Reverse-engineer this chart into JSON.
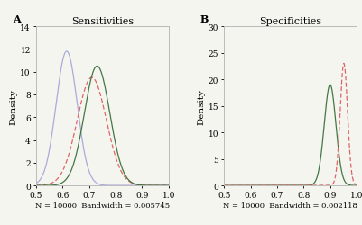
{
  "title_A": "Sensitivities",
  "title_B": "Specificities",
  "label_A": "A",
  "label_B": "B",
  "ylabel": "Density",
  "xlabel_A": "N = 10000  Bandwidth = 0.005745",
  "xlabel_B": "N = 10000  Bandwidth = 0.002118",
  "xlim": [
    0.5,
    1.0
  ],
  "panel_A": {
    "curves": [
      {
        "color": "#AAAADD",
        "linestyle": "solid",
        "mean": 0.615,
        "std": 0.04,
        "peak": 11.8
      },
      {
        "color": "#DD6666",
        "linestyle": "dashed",
        "mean": 0.71,
        "std": 0.055,
        "peak": 9.5
      },
      {
        "color": "#447744",
        "linestyle": "solid",
        "mean": 0.73,
        "std": 0.048,
        "peak": 10.5
      }
    ],
    "ylim": [
      0,
      14
    ],
    "yticks": [
      0,
      2,
      4,
      6,
      8,
      10,
      12,
      14
    ]
  },
  "panel_B": {
    "curves": [
      {
        "color": "#447744",
        "linestyle": "solid",
        "mean": 0.9,
        "std": 0.022,
        "peak": 19.0
      },
      {
        "color": "#DD6666",
        "linestyle": "dashed",
        "mean": 0.952,
        "std": 0.014,
        "peak": 23.0
      }
    ],
    "ylim": [
      0,
      30
    ],
    "yticks": [
      0,
      5,
      10,
      15,
      20,
      25,
      30
    ]
  },
  "bg_color": "#F5F5F0",
  "plot_bg": "#F5F5F0",
  "spine_color": "#BBBBBB",
  "tick_label_fontsize": 6.5,
  "axis_label_fontsize": 7.5,
  "title_fontsize": 8,
  "panel_label_fontsize": 8
}
